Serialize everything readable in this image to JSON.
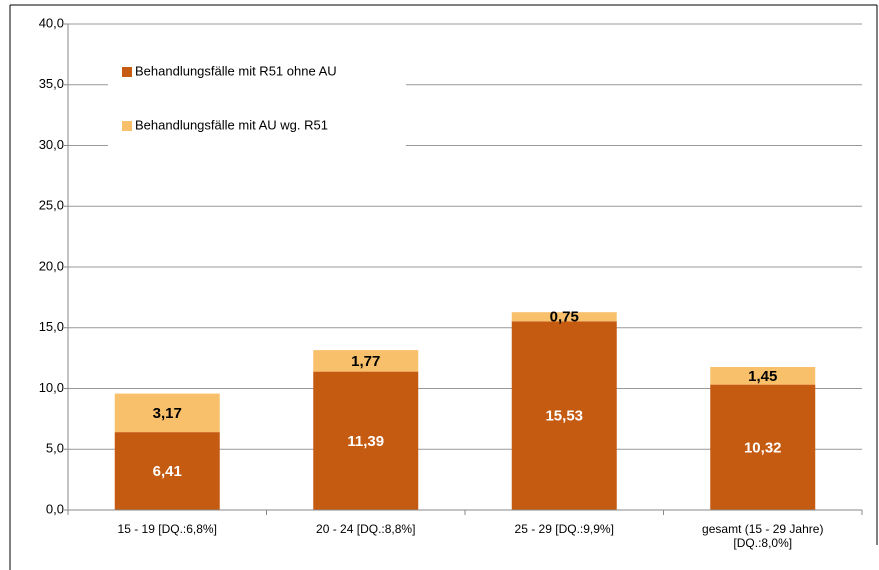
{
  "chart_data": {
    "type": "stacked_bar",
    "categories": [
      "15 - 19 [DQ.:6,8%]",
      "20 - 24 [DQ.:8,8%]",
      "25 - 29 [DQ.:9,9%]",
      "gesamt (15 - 29 Jahre) [DQ.:8,0%]"
    ],
    "series": [
      {
        "name": "Behandlungsfälle mit R51 ohne AU",
        "color": "#c55a11",
        "label_color": "#ffffff",
        "values": [
          6.41,
          11.39,
          15.53,
          10.32
        ],
        "value_labels": [
          "6,41",
          "11,39",
          "15,53",
          "10,32"
        ]
      },
      {
        "name": "Behandlungsfälle mit AU wg. R51",
        "color": "#f9c06b",
        "label_color": "#000000",
        "values": [
          3.17,
          1.77,
          0.75,
          1.45
        ],
        "value_labels": [
          "3,17",
          "1,77",
          "0,75",
          "1,45"
        ]
      }
    ],
    "ylim": [
      0,
      40
    ],
    "yticks": [
      {
        "value": 0,
        "label": "0,0"
      },
      {
        "value": 5,
        "label": "5,0"
      },
      {
        "value": 10,
        "label": "10,0"
      },
      {
        "value": 15,
        "label": "15,0"
      },
      {
        "value": 20,
        "label": "20,0"
      },
      {
        "value": 25,
        "label": "25,0"
      },
      {
        "value": 30,
        "label": "30,0"
      },
      {
        "value": 35,
        "label": "35,0"
      },
      {
        "value": 40,
        "label": "40,0"
      }
    ],
    "grid": true
  }
}
